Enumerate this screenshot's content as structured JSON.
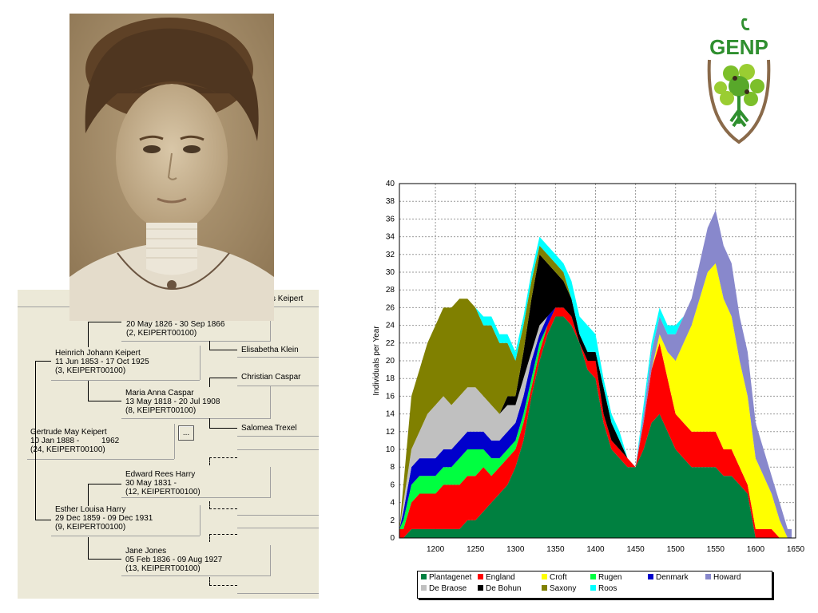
{
  "tree": {
    "people": [
      {
        "id": "p1",
        "name": "s Keipert"
      },
      {
        "id": "p2",
        "dates": "20 May 1826 - 30 Sep 1866",
        "ref": "(2, KEIPERT00100)"
      },
      {
        "id": "p3",
        "name": "Elisabetha Klein"
      },
      {
        "id": "p4",
        "name": "Heinrich Johann Keipert",
        "dates": "11 Jun 1853 - 17 Oct 1925",
        "ref": "(3, KEIPERT00100)"
      },
      {
        "id": "p5",
        "name": "Christian Caspar"
      },
      {
        "id": "p6",
        "name": "Maria Anna Caspar",
        "dates": "13 May 1818 - 20 Jul 1908",
        "ref": "(8, KEIPERT00100)"
      },
      {
        "id": "p7",
        "name": "Salomea Trexel"
      },
      {
        "id": "p8",
        "name": "Gertrude May Keipert",
        "dates": "10 Jan 1888 -          1962",
        "ref": "(24, KEIPERT00100)"
      },
      {
        "id": "p9",
        "name": "Edward Rees Harry",
        "dates": "30 May 1831 -",
        "ref": "(12, KEIPERT00100)"
      },
      {
        "id": "p10",
        "name": "Esther Louisa Harry",
        "dates": "29 Dec 1859 - 09 Dec 1931",
        "ref": "(9, KEIPERT00100)"
      },
      {
        "id": "p11",
        "name": "Jane Jones",
        "dates": "05 Feb 1836 - 09 Aug 1927",
        "ref": "(13, KEIPERT00100)"
      }
    ],
    "more_button": "..."
  },
  "logo": {
    "text": "GENP",
    "leaf_color": "#2f8f2f",
    "ring_color": "#8a6a4a"
  },
  "chart_data": {
    "type": "area",
    "stacked": true,
    "ylabel": "Individuals per Year",
    "xlabel": "",
    "x_ticks": [
      1200,
      1250,
      1300,
      1350,
      1400,
      1450,
      1500,
      1550,
      1600,
      1650
    ],
    "y_ticks": [
      0,
      2,
      4,
      6,
      8,
      10,
      12,
      14,
      16,
      18,
      20,
      22,
      24,
      26,
      28,
      30,
      32,
      34,
      36,
      38,
      40
    ],
    "xlim": [
      1155,
      1650
    ],
    "ylim": [
      0,
      40
    ],
    "grid": true,
    "legend_position": "bottom",
    "x": [
      1155,
      1160,
      1170,
      1180,
      1190,
      1200,
      1210,
      1220,
      1230,
      1240,
      1250,
      1260,
      1270,
      1280,
      1290,
      1300,
      1310,
      1320,
      1330,
      1340,
      1350,
      1360,
      1370,
      1380,
      1390,
      1400,
      1410,
      1420,
      1430,
      1440,
      1450,
      1460,
      1470,
      1480,
      1490,
      1500,
      1510,
      1520,
      1530,
      1540,
      1550,
      1560,
      1570,
      1580,
      1590,
      1600,
      1610,
      1620,
      1630,
      1640,
      1645
    ],
    "series": [
      {
        "name": "Plantagenet",
        "color": "#008040",
        "values": [
          0,
          0,
          1,
          1,
          1,
          1,
          1,
          1,
          1,
          2,
          2,
          3,
          4,
          5,
          6,
          8,
          11,
          16,
          20,
          23,
          25,
          25,
          24,
          22,
          19,
          18,
          13,
          10,
          9,
          8,
          8,
          10,
          13,
          14,
          12,
          10,
          9,
          8,
          8,
          8,
          8,
          7,
          7,
          6,
          5,
          0,
          0,
          0,
          0,
          0,
          0
        ]
      },
      {
        "name": "England",
        "color": "#ff0000",
        "values": [
          1,
          1,
          3,
          4,
          4,
          4,
          5,
          5,
          5,
          5,
          5,
          5,
          3,
          3,
          3,
          2,
          2,
          1,
          1,
          1,
          1,
          1,
          1,
          0,
          1,
          2,
          1,
          1,
          1,
          1,
          0,
          3,
          6,
          8,
          6,
          4,
          4,
          4,
          4,
          4,
          4,
          3,
          3,
          2,
          1,
          1,
          1,
          1,
          0,
          0,
          0
        ]
      },
      {
        "name": "Croft",
        "color": "#ffff00",
        "values": [
          0,
          0,
          0,
          0,
          0,
          0,
          0,
          0,
          0,
          0,
          0,
          0,
          0,
          0,
          0,
          0,
          0,
          0,
          0,
          0,
          0,
          0,
          0,
          0,
          0,
          0,
          0,
          0,
          0,
          0,
          0,
          0,
          0,
          1,
          3,
          6,
          9,
          12,
          15,
          18,
          19,
          17,
          15,
          12,
          10,
          8,
          6,
          4,
          2,
          0,
          0
        ]
      },
      {
        "name": "Rugen",
        "color": "#00ff40",
        "values": [
          0,
          1,
          2,
          2,
          2,
          2,
          2,
          2,
          3,
          3,
          3,
          2,
          2,
          1,
          1,
          1,
          1,
          1,
          1,
          0,
          0,
          0,
          0,
          0,
          0,
          0,
          0,
          0,
          0,
          0,
          0,
          0,
          0,
          0,
          0,
          0,
          0,
          0,
          0,
          0,
          0,
          0,
          0,
          0,
          0,
          0,
          0,
          0,
          0,
          0,
          0
        ]
      },
      {
        "name": "Denmark",
        "color": "#0000cc",
        "values": [
          0,
          1,
          2,
          2,
          2,
          2,
          2,
          2,
          2,
          2,
          2,
          2,
          2,
          2,
          2,
          2,
          2,
          2,
          1,
          1,
          0,
          0,
          0,
          0,
          0,
          0,
          0,
          0,
          0,
          0,
          0,
          0,
          0,
          0,
          0,
          0,
          0,
          0,
          0,
          0,
          0,
          0,
          0,
          0,
          0,
          0,
          0,
          0,
          0,
          0,
          0
        ]
      },
      {
        "name": "Howard",
        "color": "#8888cc",
        "values": [
          0,
          0,
          0,
          0,
          0,
          0,
          0,
          0,
          0,
          0,
          0,
          0,
          0,
          0,
          0,
          0,
          0,
          0,
          0,
          0,
          0,
          0,
          0,
          0,
          0,
          0,
          0,
          0,
          0,
          0,
          0,
          1,
          2,
          2,
          2,
          3,
          3,
          3,
          4,
          5,
          6,
          6,
          6,
          5,
          5,
          4,
          3,
          2,
          2,
          1,
          1
        ]
      },
      {
        "name": "De Braose",
        "color": "#c0c0c0",
        "values": [
          0,
          1,
          2,
          3,
          5,
          6,
          6,
          5,
          5,
          5,
          5,
          4,
          4,
          3,
          3,
          2,
          2,
          1,
          1,
          0,
          0,
          0,
          0,
          0,
          0,
          0,
          0,
          0,
          0,
          0,
          0,
          0,
          0,
          0,
          0,
          0,
          0,
          0,
          0,
          0,
          0,
          0,
          0,
          0,
          0,
          0,
          0,
          0,
          0,
          0,
          0
        ]
      },
      {
        "name": "De Bohun",
        "color": "#000000",
        "values": [
          0,
          0,
          0,
          0,
          0,
          0,
          0,
          0,
          0,
          0,
          0,
          0,
          0,
          0,
          1,
          1,
          3,
          6,
          8,
          6,
          4,
          3,
          2,
          1,
          1,
          1,
          3,
          2,
          1,
          0,
          0,
          0,
          0,
          0,
          0,
          0,
          0,
          0,
          0,
          0,
          0,
          0,
          0,
          0,
          0,
          0,
          0,
          0,
          0,
          0,
          0
        ]
      },
      {
        "name": "Saxony",
        "color": "#808000",
        "values": [
          0,
          2,
          6,
          7,
          8,
          9,
          10,
          11,
          11,
          10,
          9,
          8,
          9,
          8,
          6,
          4,
          3,
          2,
          1,
          1,
          1,
          1,
          0,
          0,
          0,
          0,
          0,
          0,
          0,
          0,
          0,
          0,
          0,
          0,
          0,
          0,
          0,
          0,
          0,
          0,
          0,
          0,
          0,
          0,
          0,
          0,
          0,
          0,
          0,
          0,
          0
        ]
      },
      {
        "name": "Roos",
        "color": "#00ffff",
        "values": [
          0,
          0,
          0,
          0,
          0,
          0,
          0,
          0,
          0,
          0,
          0,
          1,
          1,
          1,
          1,
          1,
          1,
          1,
          1,
          1,
          1,
          1,
          2,
          2,
          3,
          2,
          1,
          1,
          1,
          0,
          0,
          1,
          1,
          1,
          1,
          1,
          0,
          0,
          0,
          0,
          0,
          0,
          0,
          0,
          0,
          0,
          0,
          0,
          0,
          0,
          0
        ]
      }
    ]
  }
}
